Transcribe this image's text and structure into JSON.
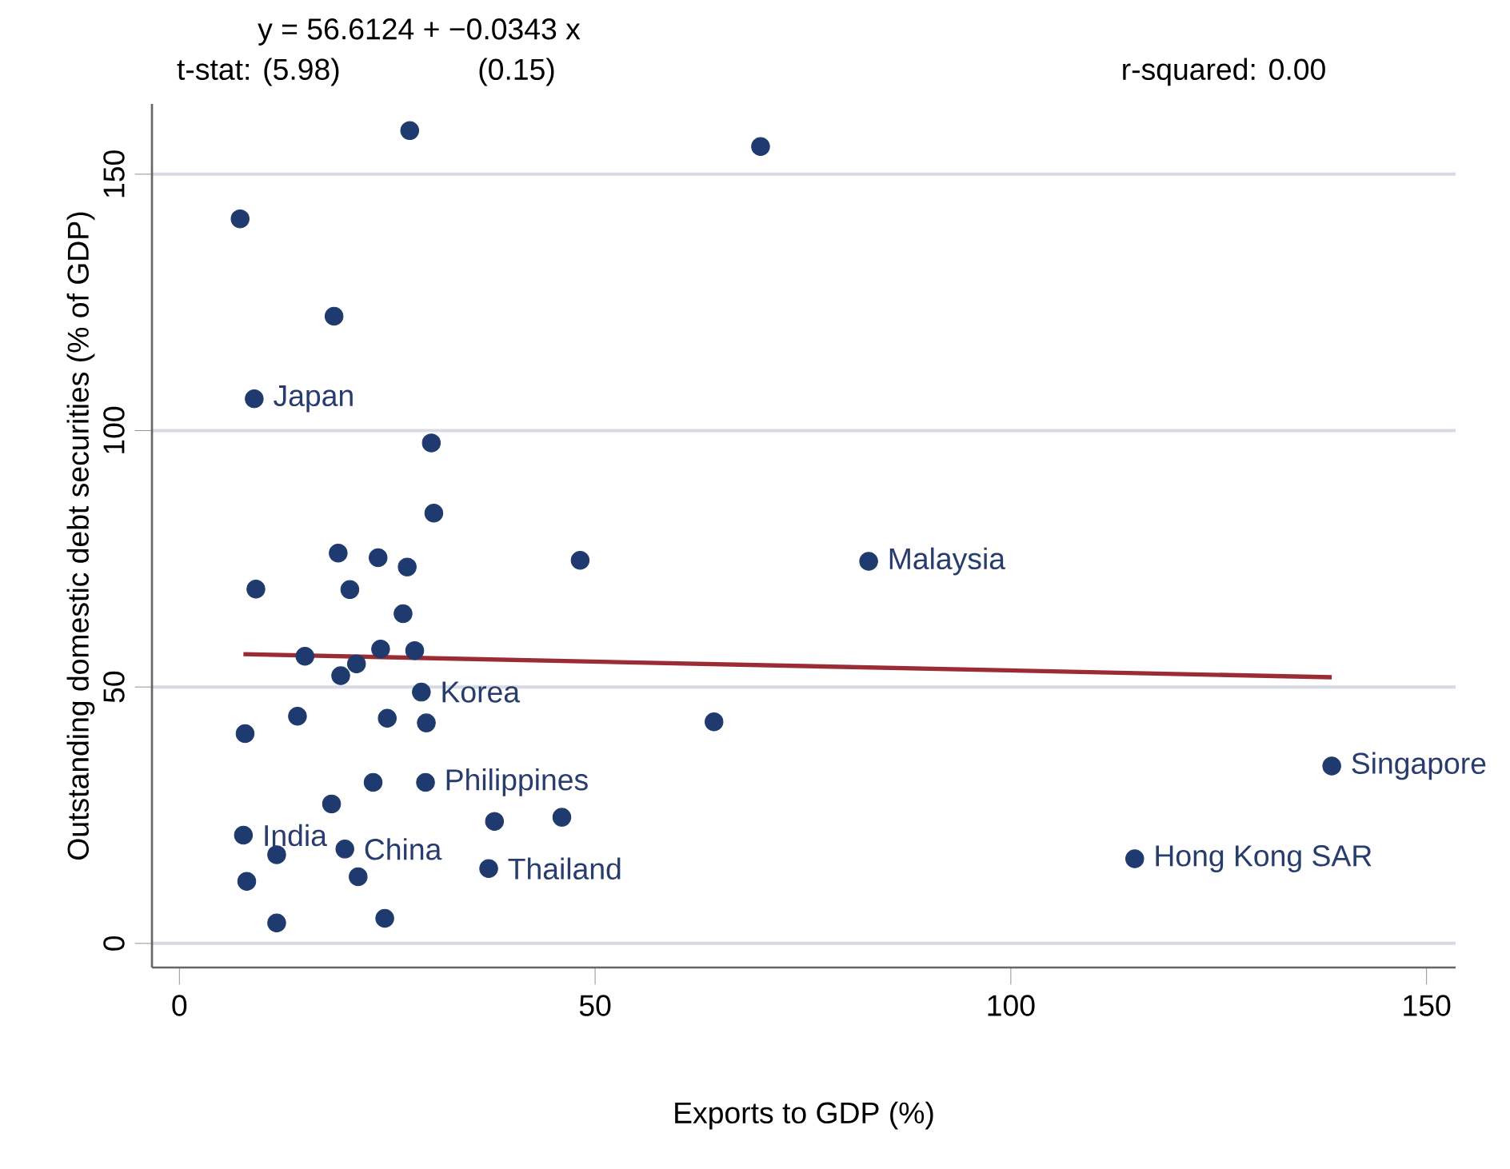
{
  "chart_data": {
    "type": "scatter",
    "xlabel": "Exports to GDP (%)",
    "ylabel": "Outstanding domestic debt securities (% of GDP)",
    "xlim": [
      -3.3,
      153.5
    ],
    "ylim": [
      -4.7,
      163.7
    ],
    "xticks": [
      0,
      50,
      100,
      150
    ],
    "yticks": [
      0,
      50,
      100,
      150
    ],
    "grid": "y",
    "marker": "circle",
    "series": [
      {
        "type": "scatter",
        "color": "#1f3a6e",
        "x": [
          27.7,
          69.9,
          7.3,
          18.6,
          9.0,
          30.3,
          30.6,
          19.1,
          23.9,
          27.4,
          48.2,
          9.2,
          20.5,
          26.9,
          15.1,
          24.2,
          28.3,
          21.3,
          19.4,
          29.1,
          14.2,
          25.0,
          29.7,
          7.9,
          64.3,
          23.3,
          29.6,
          18.3,
          37.9,
          46.0,
          7.7,
          11.7,
          19.9,
          21.5,
          37.2,
          8.1,
          11.7,
          24.7,
          82.9,
          138.6,
          114.9
        ],
        "values": [
          158.5,
          155.4,
          141.3,
          122.3,
          106.2,
          97.6,
          83.9,
          76.1,
          75.2,
          73.4,
          74.7,
          69.1,
          69.0,
          64.3,
          56.0,
          57.4,
          57.1,
          54.5,
          52.2,
          49.0,
          44.3,
          43.9,
          43.0,
          40.9,
          43.2,
          31.4,
          31.4,
          27.2,
          23.8,
          24.6,
          21.1,
          17.3,
          18.4,
          13.0,
          14.6,
          12.1,
          4.0,
          4.9,
          74.5,
          34.6,
          16.5
        ]
      },
      {
        "type": "line",
        "color": "#9b2c34",
        "marker": "none",
        "line_style": "solid",
        "x": [
          7.7,
          138.6
        ],
        "values": [
          56.4,
          51.9
        ]
      }
    ],
    "annotations": [
      "y = 56.6124 + −0.0343 x",
      "t-stat: (5.98)",
      "(0.15)",
      "r-squared: 0.00",
      {
        "text": "Japan",
        "x": 9.0,
        "y": 106.2
      },
      {
        "text": "Malaysia",
        "x": 82.9,
        "y": 74.5
      },
      {
        "text": "Korea",
        "x": 29.1,
        "y": 49.0
      },
      {
        "text": "Philippines",
        "x": 29.6,
        "y": 31.4
      },
      {
        "text": "Singapore",
        "x": 138.6,
        "y": 34.6
      },
      {
        "text": "India",
        "x": 7.7,
        "y": 21.1
      },
      {
        "text": "China",
        "x": 19.9,
        "y": 18.4
      },
      {
        "text": "Thailand",
        "x": 37.2,
        "y": 14.6
      },
      {
        "text": "Hong Kong SAR",
        "x": 114.9,
        "y": 16.5
      }
    ]
  }
}
